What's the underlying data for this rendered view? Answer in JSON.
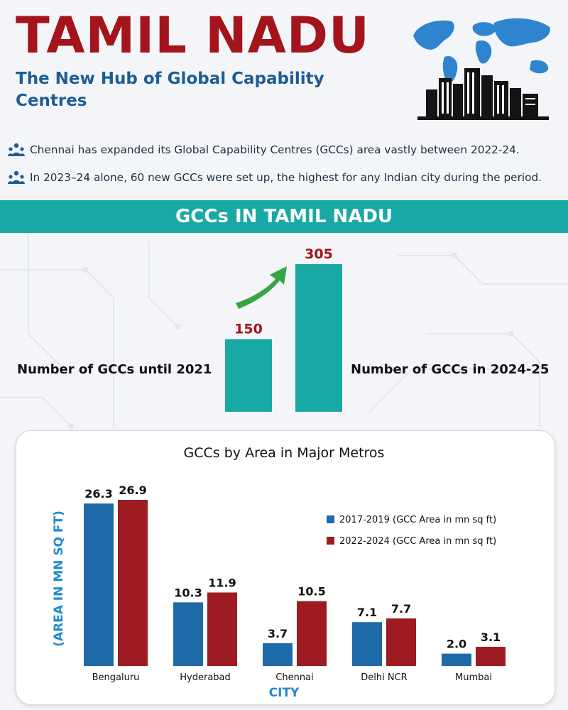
{
  "header": {
    "title": "TAMIL NADU",
    "subtitle": "The New Hub of Global Capability Centres"
  },
  "bullets": [
    "Chennai has expanded its Global Capability Centres (GCCs) area vastly between 2022-24.",
    "In 2023–24 alone, 60 new GCCs were set up, the highest for any Indian city during the period."
  ],
  "icons": {
    "bullet": "people-network-icon",
    "hero": "world-map-skyline-icon",
    "trend": "upward-arrow-icon"
  },
  "banner": {
    "title": "GCCs IN TAMIL NADU"
  },
  "colors": {
    "title_red": "#a3141d",
    "subtitle_blue": "#1e5c94",
    "teal": "#19a9a4",
    "series_blue": "#1f6aa8",
    "series_red": "#9c1c22",
    "arrow_green": "#35a644"
  },
  "chart_data": [
    {
      "type": "bar",
      "categories": [
        "Number of GCCs until 2021",
        "Number of GCCs in 2024-25"
      ],
      "values": [
        150,
        305
      ],
      "title": "",
      "xlabel": "",
      "ylabel": "",
      "ylim": [
        0,
        305
      ],
      "grid": false
    },
    {
      "type": "bar",
      "title": "GCCs by Area in Major Metros",
      "xlabel": "CITY",
      "ylabel": "(AREA IN MN SQ FT)",
      "categories": [
        "Bengaluru",
        "Hyderabad",
        "Chennai",
        "Delhi NCR",
        "Mumbai"
      ],
      "series": [
        {
          "name": "2017-2019 (GCC Area in mn sq ft)",
          "values": [
            26.3,
            10.3,
            3.7,
            7.1,
            2.0
          ]
        },
        {
          "name": "2022-2024 (GCC Area in mn sq ft)",
          "values": [
            26.9,
            11.9,
            10.5,
            7.7,
            3.1
          ]
        }
      ],
      "ylim": [
        0,
        26.9
      ],
      "grid": false,
      "legend": "right"
    }
  ]
}
